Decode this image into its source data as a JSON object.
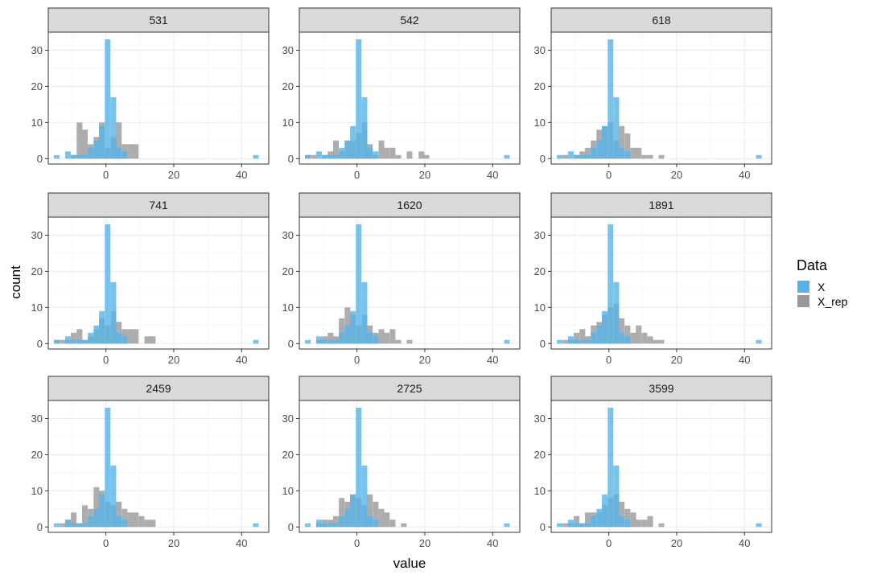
{
  "chart_data": {
    "type": "bar",
    "subtype": "faceted-histogram",
    "title": "",
    "xlabel": "value",
    "ylabel": "count",
    "xlim": [
      -17,
      48
    ],
    "ylim": [
      -1.5,
      35
    ],
    "x_ticks": [
      0,
      20,
      40
    ],
    "y_ticks": [
      0,
      10,
      20,
      30
    ],
    "bin_width": 1.67,
    "grid": true,
    "legend": {
      "title": "Data",
      "position": "right"
    },
    "colors": {
      "X": "#56B4E9",
      "X_rep": "#999999",
      "overlap": "#7a9bb0"
    },
    "series_info": [
      {
        "name": "X",
        "color": "#56B4E9",
        "opacity": 0.8
      },
      {
        "name": "X_rep",
        "color": "#999999",
        "opacity": 0.8
      }
    ],
    "x_data": [
      [
        -14.5,
        1
      ],
      [
        -11.2,
        2
      ],
      [
        -9.5,
        1
      ],
      [
        -7.8,
        1
      ],
      [
        -6.2,
        1
      ],
      [
        -4.5,
        3
      ],
      [
        -2.8,
        5
      ],
      [
        -1.2,
        9
      ],
      [
        0.5,
        33
      ],
      [
        2.2,
        17
      ],
      [
        3.8,
        3
      ],
      [
        5.5,
        2
      ],
      [
        44.2,
        1
      ]
    ],
    "panels": [
      {
        "label": "531",
        "x_rep": [
          [
            -9.5,
            1
          ],
          [
            -7.8,
            10
          ],
          [
            -6.2,
            8
          ],
          [
            -4.5,
            4
          ],
          [
            -2.8,
            6
          ],
          [
            -1.2,
            10
          ],
          [
            0.5,
            3
          ],
          [
            2.2,
            6
          ],
          [
            3.8,
            10
          ],
          [
            5.5,
            4
          ],
          [
            7.2,
            4
          ],
          [
            8.8,
            4
          ]
        ]
      },
      {
        "label": "542",
        "x_rep": [
          [
            -14.5,
            1
          ],
          [
            -12.8,
            1
          ],
          [
            -9.5,
            1
          ],
          [
            -7.8,
            2
          ],
          [
            -6.2,
            5
          ],
          [
            -4.5,
            2
          ],
          [
            -2.8,
            5
          ],
          [
            -1.2,
            5
          ],
          [
            0.5,
            7
          ],
          [
            2.2,
            10
          ],
          [
            3.8,
            4
          ],
          [
            5.5,
            1
          ],
          [
            7.2,
            5
          ],
          [
            8.8,
            3
          ],
          [
            10.5,
            3
          ],
          [
            12.2,
            1
          ],
          [
            15.5,
            2
          ],
          [
            19,
            2
          ],
          [
            20.5,
            1
          ]
        ]
      },
      {
        "label": "618",
        "x_rep": [
          [
            -12.8,
            1
          ],
          [
            -9.5,
            1
          ],
          [
            -7.8,
            2
          ],
          [
            -6.2,
            3
          ],
          [
            -4.5,
            5
          ],
          [
            -2.8,
            8
          ],
          [
            -1.2,
            9
          ],
          [
            0.5,
            10
          ],
          [
            2.2,
            5
          ],
          [
            3.8,
            9
          ],
          [
            5.5,
            7
          ],
          [
            7.2,
            3
          ],
          [
            8.8,
            3
          ],
          [
            10.5,
            1
          ],
          [
            12.2,
            1
          ],
          [
            15.5,
            1
          ]
        ]
      },
      {
        "label": "741",
        "x_rep": [
          [
            -14.5,
            1
          ],
          [
            -12.8,
            1
          ],
          [
            -11.2,
            1
          ],
          [
            -9.5,
            3
          ],
          [
            -7.8,
            4
          ],
          [
            -6.2,
            1
          ],
          [
            -4.5,
            2
          ],
          [
            -2.8,
            4
          ],
          [
            -1.2,
            7
          ],
          [
            0.5,
            5
          ],
          [
            2.2,
            9
          ],
          [
            3.8,
            6
          ],
          [
            5.5,
            4
          ],
          [
            7.2,
            4
          ],
          [
            8.8,
            4
          ],
          [
            12.2,
            2
          ],
          [
            13.8,
            2
          ]
        ]
      },
      {
        "label": "1620",
        "x_rep": [
          [
            -11.2,
            1
          ],
          [
            -9.5,
            2
          ],
          [
            -7.8,
            3
          ],
          [
            -6.2,
            2
          ],
          [
            -4.5,
            7
          ],
          [
            -2.8,
            10
          ],
          [
            -1.2,
            8
          ],
          [
            0.5,
            5
          ],
          [
            2.2,
            8
          ],
          [
            3.8,
            5
          ],
          [
            5.5,
            3
          ],
          [
            7.2,
            4
          ],
          [
            8.8,
            3
          ],
          [
            10.5,
            4
          ],
          [
            12.2,
            1
          ],
          [
            15.5,
            1
          ]
        ]
      },
      {
        "label": "1891",
        "x_rep": [
          [
            -12.8,
            1
          ],
          [
            -11.2,
            1
          ],
          [
            -9.5,
            3
          ],
          [
            -7.8,
            4
          ],
          [
            -6.2,
            2
          ],
          [
            -4.5,
            5
          ],
          [
            -2.8,
            6
          ],
          [
            -1.2,
            8
          ],
          [
            0.5,
            10
          ],
          [
            2.2,
            11
          ],
          [
            3.8,
            7
          ],
          [
            5.5,
            5
          ],
          [
            7.2,
            3
          ],
          [
            8.8,
            5
          ],
          [
            10.5,
            3
          ],
          [
            12.2,
            2
          ],
          [
            13.8,
            1
          ],
          [
            15.5,
            1
          ]
        ]
      },
      {
        "label": "2459",
        "x_rep": [
          [
            -12.8,
            1
          ],
          [
            -11.2,
            2
          ],
          [
            -9.5,
            4
          ],
          [
            -7.8,
            1
          ],
          [
            -6.2,
            6
          ],
          [
            -4.5,
            5
          ],
          [
            -2.8,
            11
          ],
          [
            -1.2,
            10
          ],
          [
            0.5,
            7
          ],
          [
            2.2,
            6
          ],
          [
            3.8,
            7
          ],
          [
            5.5,
            5
          ],
          [
            7.2,
            4
          ],
          [
            8.8,
            4
          ],
          [
            10.5,
            3
          ],
          [
            12.2,
            2
          ],
          [
            13.8,
            2
          ]
        ]
      },
      {
        "label": "2725",
        "x_rep": [
          [
            -11.2,
            1
          ],
          [
            -9.5,
            2
          ],
          [
            -7.8,
            2
          ],
          [
            -6.2,
            3
          ],
          [
            -4.5,
            8
          ],
          [
            -2.8,
            7
          ],
          [
            -1.2,
            9
          ],
          [
            0.5,
            8
          ],
          [
            2.2,
            6
          ],
          [
            3.8,
            9
          ],
          [
            5.5,
            7
          ],
          [
            7.2,
            5
          ],
          [
            8.8,
            4
          ],
          [
            10.5,
            2
          ],
          [
            13.8,
            1
          ]
        ]
      },
      {
        "label": "3599",
        "x_rep": [
          [
            -12.8,
            1
          ],
          [
            -11.2,
            1
          ],
          [
            -9.5,
            3
          ],
          [
            -7.8,
            1
          ],
          [
            -6.2,
            4
          ],
          [
            -4.5,
            4
          ],
          [
            -2.8,
            4
          ],
          [
            -1.2,
            6
          ],
          [
            0.5,
            8
          ],
          [
            2.2,
            9
          ],
          [
            3.8,
            7
          ],
          [
            5.5,
            5
          ],
          [
            7.2,
            4
          ],
          [
            8.8,
            2
          ],
          [
            10.5,
            2
          ],
          [
            12.2,
            3
          ],
          [
            15.5,
            1
          ]
        ]
      }
    ]
  }
}
